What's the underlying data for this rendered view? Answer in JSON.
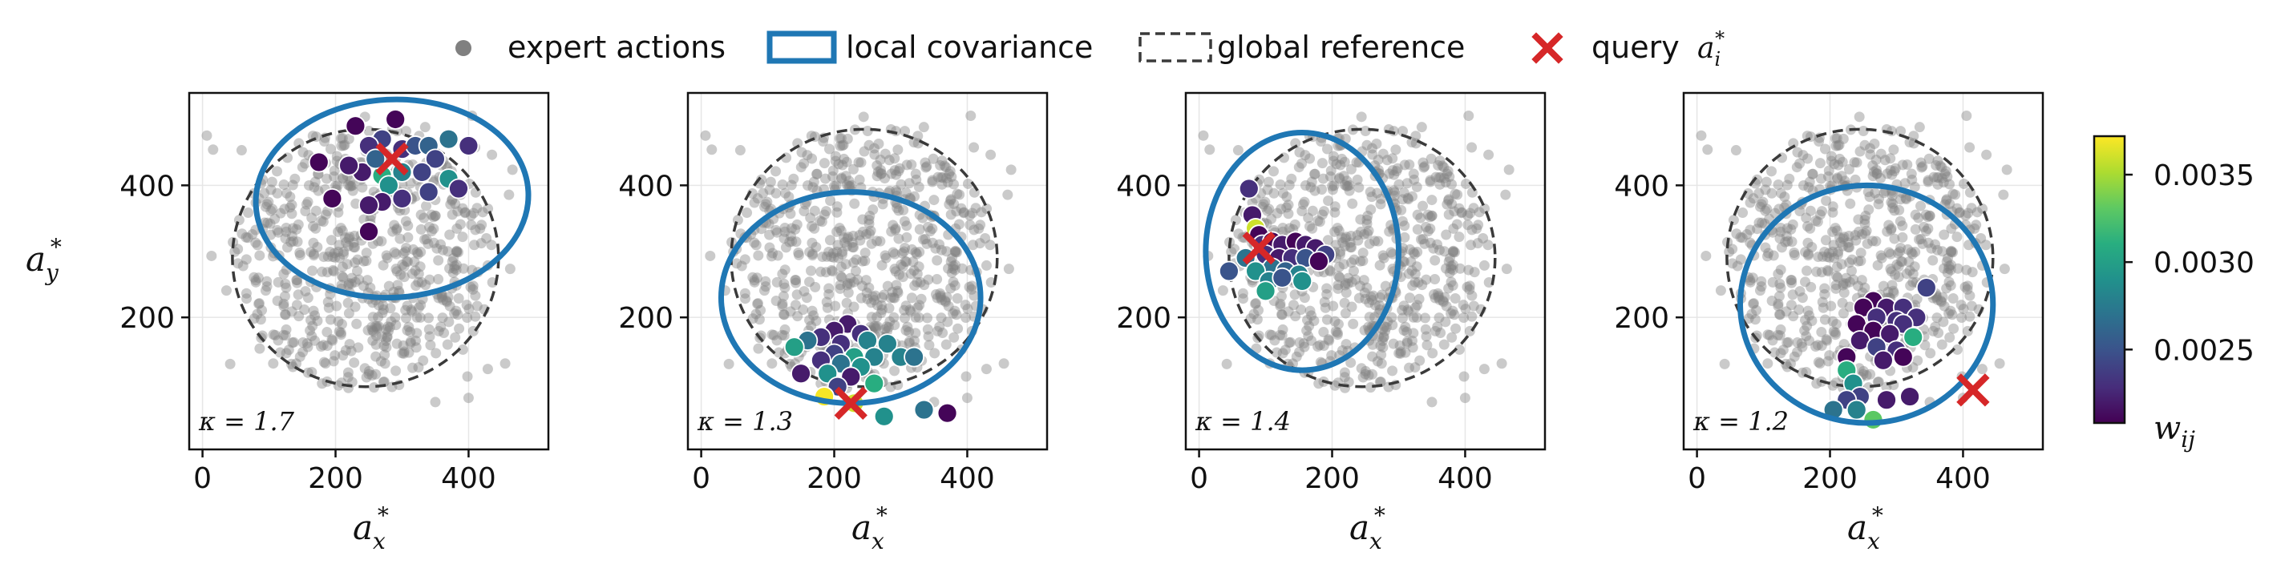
{
  "legend": {
    "expert_label": "expert actions",
    "local_label": "local covariance",
    "global_label": "global reference",
    "query_label": "query",
    "query_math": "a",
    "query_math_sub": "i",
    "query_math_sup": "*"
  },
  "colorbar": {
    "label": "w",
    "label_sub": "ij",
    "ticks": [
      "0.0035",
      "0.0030",
      "0.0025"
    ],
    "tick_values": [
      0.0035,
      0.003,
      0.0025
    ],
    "range": [
      0.00208,
      0.00372
    ],
    "colormap": "viridis"
  },
  "colors": {
    "expert": "#808080",
    "local": "#1f77b4",
    "global": "#3a3a3a",
    "query": "#d62728"
  },
  "chart_data": [
    {
      "type": "scatter",
      "xlabel": "a",
      "xlabel_sub": "x",
      "xlabel_sup": "*",
      "ylabel": "a",
      "ylabel_sub": "y",
      "ylabel_sup": "*",
      "xlim": [
        -20,
        520
      ],
      "ylim": [
        0,
        540
      ],
      "xticks": [
        0,
        200,
        400
      ],
      "yticks": [
        200,
        400
      ],
      "kappa": "κ = 1.7",
      "global": {
        "cx": 245,
        "cy": 290,
        "rx": 200,
        "ry": 195
      },
      "local": {
        "cx": 285,
        "cy": 380,
        "rx": 205,
        "ry": 150,
        "angle": -3
      },
      "query": [
        285,
        440
      ],
      "neighbors": [
        [
          230,
          490,
          0.0021
        ],
        [
          290,
          500,
          0.0021
        ],
        [
          270,
          470,
          0.0024
        ],
        [
          250,
          460,
          0.0023
        ],
        [
          300,
          455,
          0.0023
        ],
        [
          320,
          460,
          0.0025
        ],
        [
          340,
          460,
          0.0026
        ],
        [
          370,
          470,
          0.0027
        ],
        [
          400,
          460,
          0.0023
        ],
        [
          350,
          440,
          0.0024
        ],
        [
          330,
          420,
          0.0024
        ],
        [
          300,
          420,
          0.0028
        ],
        [
          270,
          415,
          0.0031
        ],
        [
          240,
          420,
          0.0022
        ],
        [
          220,
          430,
          0.0022
        ],
        [
          175,
          435,
          0.0021
        ],
        [
          260,
          440,
          0.0026
        ],
        [
          280,
          400,
          0.0029
        ],
        [
          300,
          380,
          0.0023
        ],
        [
          270,
          375,
          0.0022
        ],
        [
          250,
          370,
          0.0022
        ],
        [
          195,
          380,
          0.0021
        ],
        [
          340,
          390,
          0.0024
        ],
        [
          370,
          410,
          0.0029
        ],
        [
          385,
          395,
          0.0023
        ],
        [
          250,
          330,
          0.0021
        ]
      ]
    },
    {
      "type": "scatter",
      "xlabel": "a",
      "xlabel_sub": "x",
      "xlabel_sup": "*",
      "xlim": [
        -20,
        520
      ],
      "ylim": [
        0,
        540
      ],
      "xticks": [
        0,
        200,
        400
      ],
      "yticks": [
        200,
        400
      ],
      "kappa": "κ = 1.3",
      "global": {
        "cx": 245,
        "cy": 290,
        "rx": 200,
        "ry": 195
      },
      "local": {
        "cx": 225,
        "cy": 230,
        "rx": 195,
        "ry": 160,
        "angle": 0
      },
      "query": [
        225,
        70
      ],
      "neighbors": [
        [
          220,
          190,
          0.0022
        ],
        [
          200,
          180,
          0.0022
        ],
        [
          240,
          175,
          0.0023
        ],
        [
          180,
          170,
          0.0023
        ],
        [
          160,
          165,
          0.0027
        ],
        [
          210,
          160,
          0.0023
        ],
        [
          250,
          165,
          0.0028
        ],
        [
          280,
          160,
          0.0028
        ],
        [
          140,
          155,
          0.003
        ],
        [
          200,
          145,
          0.0024
        ],
        [
          230,
          140,
          0.003
        ],
        [
          260,
          140,
          0.0028
        ],
        [
          300,
          140,
          0.0028
        ],
        [
          320,
          140,
          0.0027
        ],
        [
          180,
          135,
          0.0023
        ],
        [
          210,
          130,
          0.0027
        ],
        [
          240,
          125,
          0.0029
        ],
        [
          150,
          115,
          0.0022
        ],
        [
          190,
          115,
          0.0029
        ],
        [
          225,
          110,
          0.0022
        ],
        [
          260,
          100,
          0.0031
        ],
        [
          205,
          95,
          0.0024
        ],
        [
          185,
          80,
          0.0037
        ],
        [
          230,
          70,
          0.0036
        ],
        [
          275,
          50,
          0.0029
        ],
        [
          335,
          60,
          0.0027
        ],
        [
          370,
          55,
          0.0021
        ]
      ]
    },
    {
      "type": "scatter",
      "xlabel": "a",
      "xlabel_sub": "x",
      "xlabel_sup": "*",
      "xlim": [
        -20,
        520
      ],
      "ylim": [
        0,
        540
      ],
      "xticks": [
        0,
        200,
        400
      ],
      "yticks": [
        200,
        400
      ],
      "kappa": "κ = 1.4",
      "global": {
        "cx": 245,
        "cy": 290,
        "rx": 200,
        "ry": 195
      },
      "local": {
        "cx": 155,
        "cy": 300,
        "rx": 145,
        "ry": 180,
        "angle": 0
      },
      "query": [
        90,
        305
      ],
      "neighbors": [
        [
          75,
          395,
          0.0023
        ],
        [
          80,
          355,
          0.0022
        ],
        [
          85,
          335,
          0.0036
        ],
        [
          90,
          325,
          0.0021
        ],
        [
          95,
          310,
          0.0023
        ],
        [
          110,
          315,
          0.0021
        ],
        [
          125,
          310,
          0.0022
        ],
        [
          145,
          315,
          0.0021
        ],
        [
          160,
          310,
          0.0022
        ],
        [
          175,
          305,
          0.0022
        ],
        [
          190,
          295,
          0.0024
        ],
        [
          100,
          295,
          0.0023
        ],
        [
          120,
          290,
          0.0022
        ],
        [
          140,
          290,
          0.0023
        ],
        [
          160,
          290,
          0.0025
        ],
        [
          180,
          285,
          0.0021
        ],
        [
          70,
          290,
          0.0027
        ],
        [
          110,
          275,
          0.0027
        ],
        [
          130,
          270,
          0.0026
        ],
        [
          150,
          265,
          0.0028
        ],
        [
          45,
          270,
          0.0025
        ],
        [
          85,
          270,
          0.0029
        ],
        [
          105,
          255,
          0.0028
        ],
        [
          125,
          260,
          0.0025
        ],
        [
          155,
          255,
          0.0029
        ],
        [
          100,
          240,
          0.003
        ]
      ]
    },
    {
      "type": "scatter",
      "xlabel": "a",
      "xlabel_sub": "x",
      "xlabel_sup": "*",
      "xlim": [
        -20,
        520
      ],
      "ylim": [
        0,
        540
      ],
      "xticks": [
        0,
        200,
        400
      ],
      "yticks": [
        200,
        400
      ],
      "kappa": "κ = 1.2",
      "global": {
        "cx": 245,
        "cy": 290,
        "rx": 200,
        "ry": 195
      },
      "local": {
        "cx": 255,
        "cy": 220,
        "rx": 190,
        "ry": 180,
        "angle": 0
      },
      "query": [
        415,
        90
      ],
      "neighbors": [
        [
          265,
          225,
          0.0021
        ],
        [
          250,
          215,
          0.0021
        ],
        [
          285,
          215,
          0.0022
        ],
        [
          310,
          215,
          0.0023
        ],
        [
          330,
          200,
          0.0023
        ],
        [
          270,
          200,
          0.0023
        ],
        [
          300,
          195,
          0.0023
        ],
        [
          310,
          190,
          0.0023
        ],
        [
          240,
          190,
          0.0021
        ],
        [
          345,
          245,
          0.0024
        ],
        [
          265,
          180,
          0.0021
        ],
        [
          290,
          175,
          0.0022
        ],
        [
          325,
          170,
          0.0031
        ],
        [
          245,
          165,
          0.0022
        ],
        [
          270,
          155,
          0.0024
        ],
        [
          300,
          150,
          0.0023
        ],
        [
          225,
          140,
          0.0021
        ],
        [
          280,
          135,
          0.0022
        ],
        [
          310,
          140,
          0.0021
        ],
        [
          225,
          120,
          0.0031
        ],
        [
          235,
          100,
          0.0029
        ],
        [
          245,
          80,
          0.0024
        ],
        [
          285,
          75,
          0.0022
        ],
        [
          320,
          80,
          0.0022
        ],
        [
          225,
          75,
          0.0024
        ],
        [
          205,
          60,
          0.0027
        ],
        [
          240,
          60,
          0.0028
        ],
        [
          265,
          45,
          0.0033
        ]
      ]
    }
  ]
}
